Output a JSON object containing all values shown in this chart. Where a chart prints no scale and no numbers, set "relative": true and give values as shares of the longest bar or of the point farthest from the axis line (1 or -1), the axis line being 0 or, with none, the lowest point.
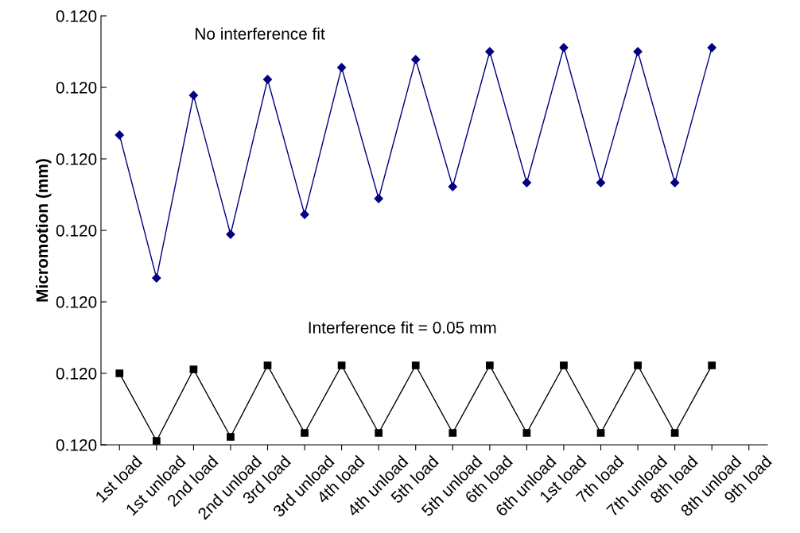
{
  "chart_data": {
    "type": "line",
    "ylabel": "Micromotion (mm)",
    "relative": true,
    "categories": [
      "1st load",
      "1st unload",
      "2nd load",
      "2nd unload",
      "3rd load",
      "3rd unload",
      "4th load",
      "4th unload",
      "5th load",
      "5th unload",
      "6th load",
      "6th unload",
      "1st load",
      "7th load",
      "7th unload",
      "8th load",
      "8th unload",
      "9th load"
    ],
    "series": [
      {
        "color": "#000080",
        "marker": "diamond",
        "values": [
          0.78,
          0.42,
          0.88,
          0.53,
          0.92,
          0.58,
          0.95,
          0.62,
          0.97,
          0.65,
          0.99,
          0.66,
          1,
          0.66,
          0.99,
          0.66,
          1,
          null
        ]
      },
      {
        "color": "#000000",
        "marker": "square",
        "values": [
          0.18,
          0.01,
          0.19,
          0.02,
          0.2,
          0.03,
          0.2,
          0.03,
          0.2,
          0.03,
          0.2,
          0.03,
          0.2,
          0.03,
          0.2,
          0.03,
          0.2,
          null
        ]
      }
    ],
    "annotations": [
      "No interference fit",
      "Interference fit = 0.05 mm",
      "0.120",
      "0.120",
      "0.120",
      "0.120",
      "0.120",
      "0.120",
      "0.120"
    ]
  }
}
